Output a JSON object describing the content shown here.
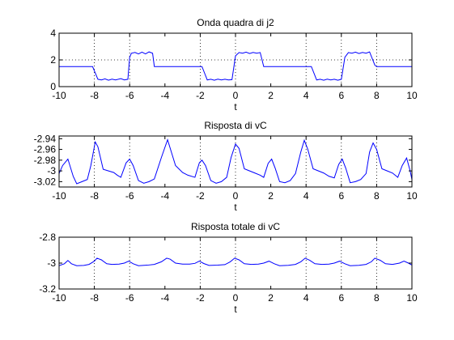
{
  "colors": {
    "background": "#ffffff",
    "axes": "#000000",
    "line": "#0000ff",
    "grid": "#000000"
  },
  "chart_data": [
    {
      "type": "line",
      "title": "Onda quadra di j2",
      "xlabel": "t",
      "ylabel": "",
      "xlim": [
        -10,
        10
      ],
      "ylim": [
        0,
        4
      ],
      "xticks": [
        -10,
        -8,
        -6,
        -4,
        -2,
        0,
        2,
        4,
        6,
        8,
        10
      ],
      "yticks": [
        0,
        2,
        4
      ],
      "grid": true,
      "grid_lines": {
        "x": [
          -8,
          -6,
          -2,
          0,
          4,
          6,
          8
        ],
        "y": [
          2
        ]
      },
      "series": [
        {
          "values": [
            [
              -10,
              1.5
            ],
            [
              -8.1,
              1.5
            ],
            [
              -7.8,
              0.55
            ],
            [
              -7.6,
              0.5
            ],
            [
              -7.4,
              0.58
            ],
            [
              -7.2,
              0.48
            ],
            [
              -7.0,
              0.56
            ],
            [
              -6.8,
              0.5
            ],
            [
              -6.5,
              0.6
            ],
            [
              -6.3,
              0.5
            ],
            [
              -6.1,
              0.55
            ],
            [
              -6.0,
              2.2
            ],
            [
              -5.9,
              2.5
            ],
            [
              -5.7,
              2.56
            ],
            [
              -5.5,
              2.45
            ],
            [
              -5.3,
              2.58
            ],
            [
              -5.1,
              2.45
            ],
            [
              -4.9,
              2.6
            ],
            [
              -4.7,
              2.5
            ],
            [
              -4.6,
              1.5
            ],
            [
              -1.9,
              1.5
            ],
            [
              -1.6,
              0.5
            ],
            [
              -1.4,
              0.55
            ],
            [
              -1.2,
              0.48
            ],
            [
              -1.0,
              0.56
            ],
            [
              -0.8,
              0.5
            ],
            [
              -0.6,
              0.55
            ],
            [
              -0.4,
              0.5
            ],
            [
              -0.2,
              0.52
            ],
            [
              0.0,
              2.3
            ],
            [
              0.2,
              2.55
            ],
            [
              0.4,
              2.5
            ],
            [
              0.6,
              2.58
            ],
            [
              0.8,
              2.48
            ],
            [
              1.0,
              2.56
            ],
            [
              1.2,
              2.5
            ],
            [
              1.4,
              2.55
            ],
            [
              1.6,
              1.5
            ],
            [
              4.3,
              1.5
            ],
            [
              4.6,
              0.5
            ],
            [
              4.8,
              0.55
            ],
            [
              5.0,
              0.48
            ],
            [
              5.2,
              0.56
            ],
            [
              5.4,
              0.5
            ],
            [
              5.6,
              0.55
            ],
            [
              5.8,
              0.48
            ],
            [
              6.0,
              0.55
            ],
            [
              6.2,
              2.2
            ],
            [
              6.4,
              2.55
            ],
            [
              6.6,
              2.5
            ],
            [
              6.8,
              2.58
            ],
            [
              7.0,
              2.48
            ],
            [
              7.2,
              2.56
            ],
            [
              7.4,
              2.5
            ],
            [
              7.6,
              2.6
            ],
            [
              7.9,
              1.6
            ],
            [
              8.0,
              1.5
            ],
            [
              10,
              1.5
            ]
          ]
        }
      ]
    },
    {
      "type": "line",
      "title": "Risposta di vC",
      "xlabel": "t",
      "ylabel": "",
      "xlim": [
        -10,
        10
      ],
      "ylim": [
        -3.03,
        -2.935
      ],
      "xticks": [
        -10,
        -8,
        -6,
        -4,
        -2,
        0,
        2,
        4,
        6,
        8,
        10
      ],
      "yticks": [
        -3.02,
        -3,
        -2.98,
        -2.96,
        -2.94
      ],
      "grid": true,
      "grid_lines": {
        "x": [
          -8,
          -6,
          -2,
          0,
          4,
          6,
          8
        ],
        "y": []
      },
      "series": [
        {
          "values": [
            [
              -10,
              -3.005
            ],
            [
              -9.8,
              -2.99
            ],
            [
              -9.5,
              -2.978
            ],
            [
              -9.2,
              -3.01
            ],
            [
              -9.0,
              -3.024
            ],
            [
              -8.7,
              -3.02
            ],
            [
              -8.4,
              -3.016
            ],
            [
              -8.2,
              -2.99
            ],
            [
              -7.95,
              -2.946
            ],
            [
              -7.8,
              -2.955
            ],
            [
              -7.5,
              -2.997
            ],
            [
              -7.2,
              -3.0
            ],
            [
              -6.9,
              -3.003
            ],
            [
              -6.7,
              -3.008
            ],
            [
              -6.5,
              -3.012
            ],
            [
              -6.2,
              -2.985
            ],
            [
              -6.0,
              -2.978
            ],
            [
              -5.8,
              -2.99
            ],
            [
              -5.5,
              -3.018
            ],
            [
              -5.2,
              -3.023
            ],
            [
              -4.9,
              -3.02
            ],
            [
              -4.6,
              -3.015
            ],
            [
              -4.2,
              -2.975
            ],
            [
              -3.85,
              -2.942
            ],
            [
              -3.7,
              -2.958
            ],
            [
              -3.4,
              -2.99
            ],
            [
              -3.0,
              -3.003
            ],
            [
              -2.7,
              -3.008
            ],
            [
              -2.3,
              -3.012
            ],
            [
              -2.05,
              -2.985
            ],
            [
              -1.9,
              -2.98
            ],
            [
              -1.7,
              -2.99
            ],
            [
              -1.4,
              -3.018
            ],
            [
              -1.1,
              -3.023
            ],
            [
              -0.8,
              -3.02
            ],
            [
              -0.5,
              -3.012
            ],
            [
              -0.25,
              -2.975
            ],
            [
              0.0,
              -2.95
            ],
            [
              0.2,
              -2.958
            ],
            [
              0.5,
              -2.996
            ],
            [
              0.8,
              -3.0
            ],
            [
              1.1,
              -3.004
            ],
            [
              1.4,
              -3.008
            ],
            [
              1.6,
              -3.012
            ],
            [
              1.85,
              -2.986
            ],
            [
              2.05,
              -2.978
            ],
            [
              2.25,
              -2.995
            ],
            [
              2.5,
              -3.02
            ],
            [
              2.8,
              -3.022
            ],
            [
              3.1,
              -3.018
            ],
            [
              3.4,
              -3.005
            ],
            [
              3.7,
              -2.965
            ],
            [
              3.9,
              -2.943
            ],
            [
              4.1,
              -2.96
            ],
            [
              4.4,
              -2.996
            ],
            [
              4.7,
              -3.0
            ],
            [
              5.0,
              -3.004
            ],
            [
              5.3,
              -3.01
            ],
            [
              5.6,
              -3.013
            ],
            [
              5.85,
              -2.988
            ],
            [
              6.05,
              -2.978
            ],
            [
              6.25,
              -2.995
            ],
            [
              6.5,
              -3.022
            ],
            [
              6.8,
              -3.02
            ],
            [
              7.1,
              -3.016
            ],
            [
              7.4,
              -3.005
            ],
            [
              7.6,
              -2.965
            ],
            [
              7.8,
              -2.948
            ],
            [
              8.0,
              -2.96
            ],
            [
              8.3,
              -2.996
            ],
            [
              8.6,
              -3.0
            ],
            [
              8.9,
              -3.004
            ],
            [
              9.2,
              -3.012
            ],
            [
              9.45,
              -2.99
            ],
            [
              9.7,
              -2.976
            ],
            [
              9.9,
              -3.0
            ],
            [
              10,
              -3.016
            ]
          ]
        }
      ]
    },
    {
      "type": "line",
      "title": "Risposta totale di vC",
      "xlabel": "t",
      "ylabel": "",
      "xlim": [
        -10,
        10
      ],
      "ylim": [
        -3.2,
        -2.8
      ],
      "xticks": [
        -10,
        -8,
        -6,
        -4,
        -2,
        0,
        2,
        4,
        6,
        8,
        10
      ],
      "yticks": [
        -3.2,
        -3,
        -2.8
      ],
      "grid": true,
      "grid_lines": {
        "x": [
          -8,
          -6,
          -2,
          0,
          4,
          6,
          8
        ],
        "y": []
      },
      "series": [
        {
          "values": [
            [
              -10,
              -3.02
            ],
            [
              -9.7,
              -3.005
            ],
            [
              -9.5,
              -2.98
            ],
            [
              -9.3,
              -3.005
            ],
            [
              -9.0,
              -3.02
            ],
            [
              -8.6,
              -3.018
            ],
            [
              -8.3,
              -3.01
            ],
            [
              -8.0,
              -2.985
            ],
            [
              -7.85,
              -2.962
            ],
            [
              -7.6,
              -2.975
            ],
            [
              -7.3,
              -3.005
            ],
            [
              -7.0,
              -3.01
            ],
            [
              -6.6,
              -3.008
            ],
            [
              -6.3,
              -3.0
            ],
            [
              -6.05,
              -2.985
            ],
            [
              -5.8,
              -3.005
            ],
            [
              -5.5,
              -3.02
            ],
            [
              -5.0,
              -3.016
            ],
            [
              -4.6,
              -3.01
            ],
            [
              -4.2,
              -2.99
            ],
            [
              -3.9,
              -2.962
            ],
            [
              -3.7,
              -2.97
            ],
            [
              -3.4,
              -3.0
            ],
            [
              -3.0,
              -3.008
            ],
            [
              -2.6,
              -3.008
            ],
            [
              -2.3,
              -3.002
            ],
            [
              -2.05,
              -2.985
            ],
            [
              -1.8,
              -3.003
            ],
            [
              -1.5,
              -3.018
            ],
            [
              -1.0,
              -3.016
            ],
            [
              -0.6,
              -3.012
            ],
            [
              -0.3,
              -2.99
            ],
            [
              -0.05,
              -2.962
            ],
            [
              0.2,
              -2.975
            ],
            [
              0.5,
              -3.005
            ],
            [
              0.9,
              -3.01
            ],
            [
              1.3,
              -3.008
            ],
            [
              1.6,
              -3.0
            ],
            [
              1.9,
              -2.985
            ],
            [
              2.2,
              -3.005
            ],
            [
              2.5,
              -3.02
            ],
            [
              3.0,
              -3.017
            ],
            [
              3.4,
              -3.01
            ],
            [
              3.7,
              -2.99
            ],
            [
              3.95,
              -2.962
            ],
            [
              4.2,
              -2.978
            ],
            [
              4.5,
              -3.005
            ],
            [
              4.9,
              -3.01
            ],
            [
              5.3,
              -3.008
            ],
            [
              5.6,
              -3.0
            ],
            [
              5.9,
              -2.985
            ],
            [
              6.2,
              -3.005
            ],
            [
              6.5,
              -3.02
            ],
            [
              7.0,
              -3.017
            ],
            [
              7.4,
              -3.01
            ],
            [
              7.7,
              -2.99
            ],
            [
              7.9,
              -2.962
            ],
            [
              8.2,
              -2.978
            ],
            [
              8.5,
              -3.005
            ],
            [
              8.9,
              -3.01
            ],
            [
              9.3,
              -3.0
            ],
            [
              9.55,
              -2.985
            ],
            [
              9.8,
              -3.0
            ],
            [
              10,
              -3.015
            ]
          ]
        }
      ]
    }
  ]
}
